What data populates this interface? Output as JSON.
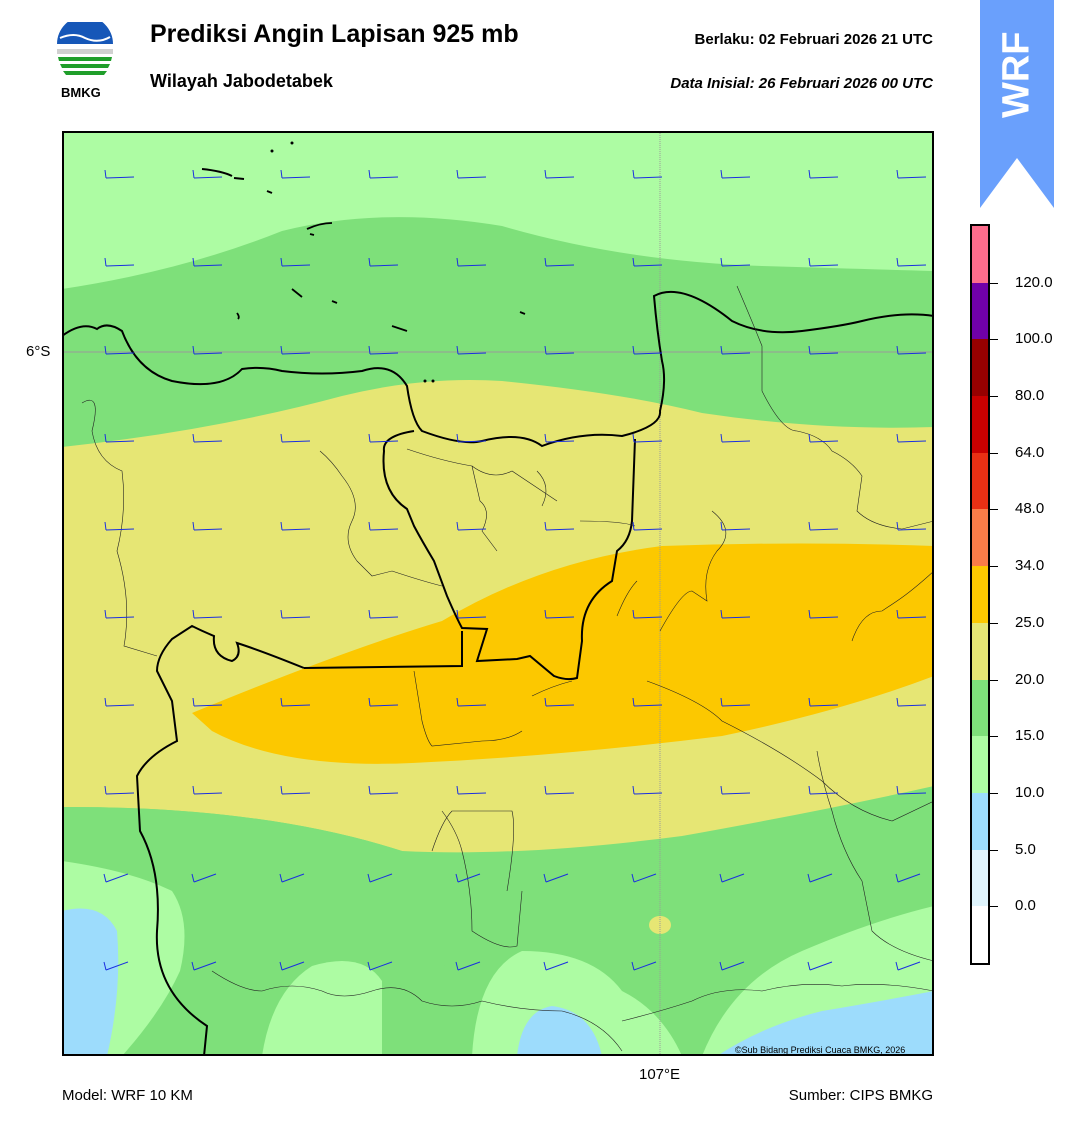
{
  "header": {
    "title": "Prediksi Angin Lapisan 925 mb",
    "region": "Wilayah Jabodetabek",
    "valid": "Berlaku:  02 Februari 2026 21 UTC",
    "initial": "Data Inisial:  26 Februari 2026 00 UTC",
    "logo_text": "BMKG",
    "badge_text": "WRF"
  },
  "map": {
    "lat_label": "6°S",
    "lon_label": "107°E",
    "copyright": "©Sub Bidang Prediksi Cuaca BMKG, 2026",
    "colors": {
      "c10_15": "#adfca3",
      "c15_20": "#7ee07a",
      "c20_25": "#e6e674",
      "c25_34": "#fcc800",
      "c5_10": "#9ddcfc",
      "barb": "#1a2fe0"
    }
  },
  "colorbar": {
    "ticks": [
      "0.0",
      "5.0",
      "10.0",
      "15.0",
      "20.0",
      "25.0",
      "34.0",
      "48.0",
      "64.0",
      "80.0",
      "100.0",
      "120.0"
    ],
    "colors": [
      "#ffffff",
      "#dff4fc",
      "#9ddcfc",
      "#adfca3",
      "#7ee07a",
      "#e6e674",
      "#fcc800",
      "#f87c48",
      "#e83014",
      "#c80000",
      "#960000",
      "#7000a8",
      "#fc6c8c"
    ]
  },
  "footer": {
    "model": "Model: WRF 10 KM",
    "source": "Sumber: CIPS BMKG"
  }
}
